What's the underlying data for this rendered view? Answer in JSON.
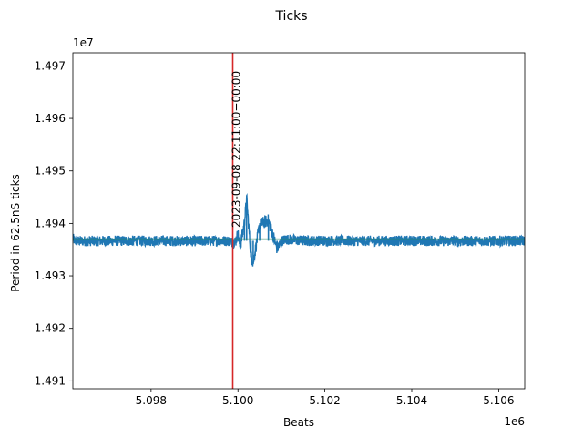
{
  "chart_data": {
    "type": "line",
    "title": "Ticks",
    "xlabel": "Beats",
    "ylabel": "Period in 62.5nS ticks",
    "x_offset_label": "1e6",
    "y_offset_label": "1e7",
    "xlim": [
      5096200,
      5106600
    ],
    "ylim": [
      14908500,
      14972500
    ],
    "x_ticks": [
      {
        "value": 5098000,
        "label": "5.098"
      },
      {
        "value": 5100000,
        "label": "5.100"
      },
      {
        "value": 5102000,
        "label": "5.102"
      },
      {
        "value": 5104000,
        "label": "5.104"
      },
      {
        "value": 5106000,
        "label": "5.106"
      }
    ],
    "y_ticks": [
      {
        "value": 14910000,
        "label": "1.491"
      },
      {
        "value": 14920000,
        "label": "1.492"
      },
      {
        "value": 14930000,
        "label": "1.493"
      },
      {
        "value": 14940000,
        "label": "1.494"
      },
      {
        "value": 14950000,
        "label": "1.495"
      },
      {
        "value": 14960000,
        "label": "1.496"
      },
      {
        "value": 14970000,
        "label": "1.497"
      }
    ],
    "grid": false,
    "series": [
      {
        "color": "#1f77b4",
        "baseline": 14936700,
        "noise_amplitude": 1000,
        "x": [
          5096200,
          5096250,
          5097000,
          5098000,
          5099000,
          5099500,
          5099800,
          5099900,
          5100000,
          5100050,
          5100150,
          5100200,
          5100300,
          5100350,
          5100500,
          5100700,
          5100900,
          5101100,
          5101500,
          5102000,
          5103000,
          5104000,
          5105000,
          5106000,
          5106600
        ],
        "y": [
          14938200,
          14936500,
          14936600,
          14936700,
          14936500,
          14936700,
          14936600,
          14935500,
          14938000,
          14935500,
          14940200,
          14944700,
          14933800,
          14932500,
          14939800,
          14940600,
          14935200,
          14937700,
          14936700,
          14936800,
          14936600,
          14936700,
          14936500,
          14936600,
          14936700
        ]
      },
      {
        "color": "#2a8a6a",
        "x": [
          5096200,
          5106600
        ],
        "y": [
          14937000,
          14937000
        ]
      }
    ],
    "annotations": [
      {
        "type": "vline",
        "x": 5099880,
        "color": "#d62728",
        "label": "2023-09-08 22:11:00+00:00"
      }
    ]
  }
}
